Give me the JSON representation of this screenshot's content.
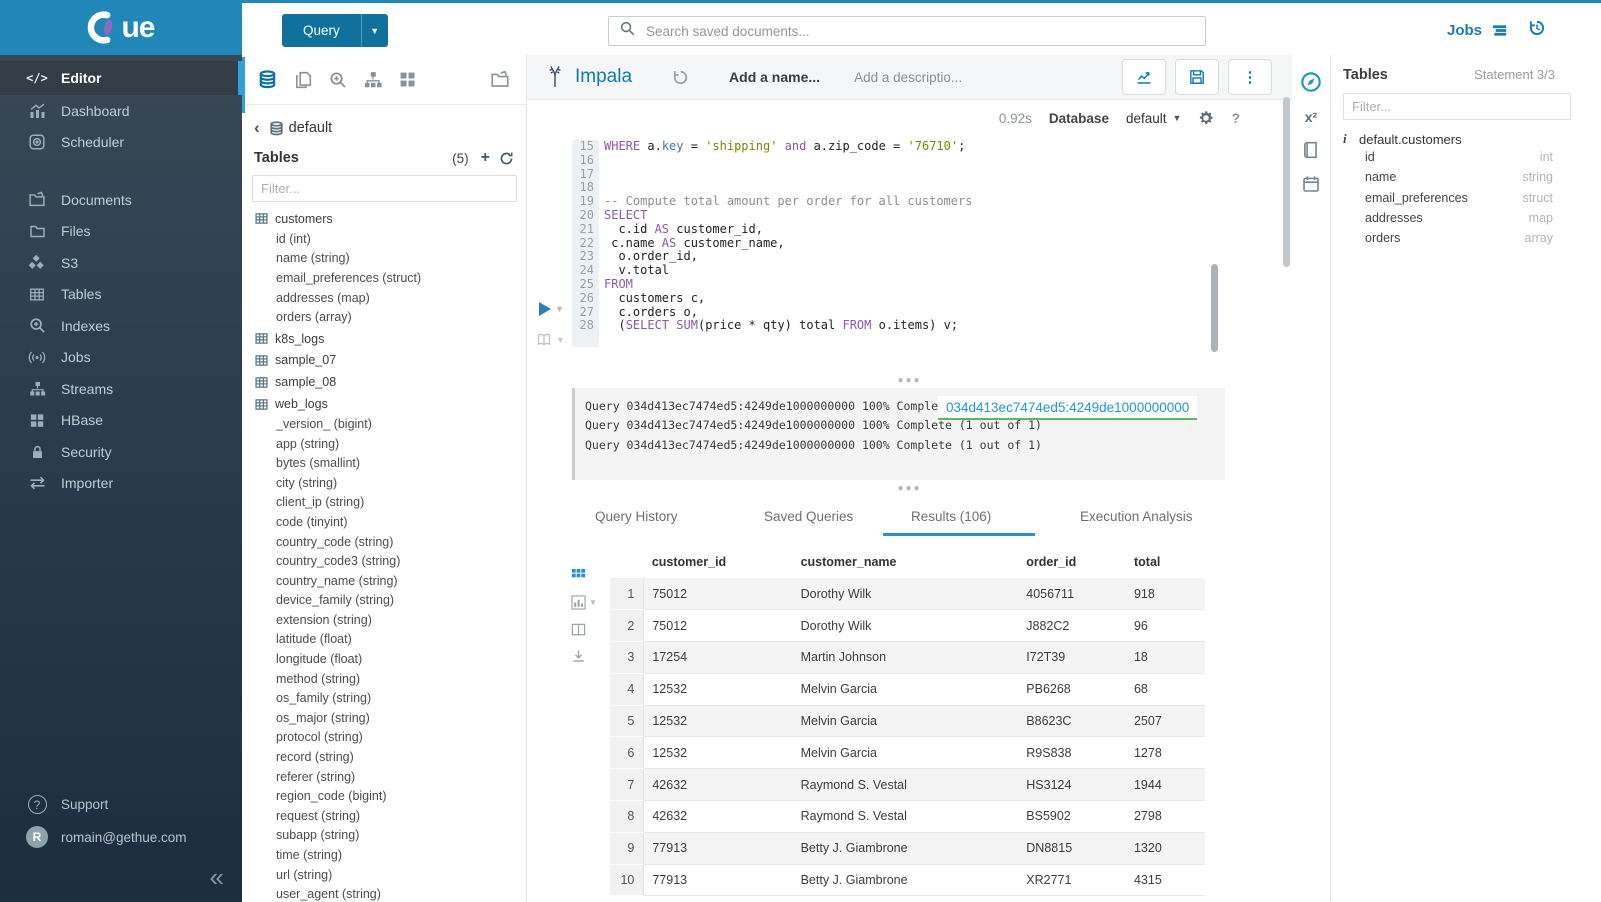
{
  "topbar": {
    "query_button": {
      "label": "Query"
    },
    "search_placeholder": "Search saved documents...",
    "jobs_label": "Jobs"
  },
  "sidebar": {
    "logo_text": "ue",
    "items": [
      {
        "label": "Editor",
        "icon": "code-icon",
        "active": true
      },
      {
        "label": "Dashboard",
        "icon": "dashboard-icon"
      },
      {
        "label": "Scheduler",
        "icon": "scheduler-icon",
        "gap_after": true
      },
      {
        "label": "Documents",
        "icon": "documents-icon"
      },
      {
        "label": "Files",
        "icon": "folder-icon"
      },
      {
        "label": "S3",
        "icon": "cubes-icon"
      },
      {
        "label": "Tables",
        "icon": "table-grid-icon"
      },
      {
        "label": "Indexes",
        "icon": "search-plus-icon"
      },
      {
        "label": "Jobs",
        "icon": "broadcast-icon"
      },
      {
        "label": "Streams",
        "icon": "sitemap-icon"
      },
      {
        "label": "HBase",
        "icon": "grid-icon"
      },
      {
        "label": "Security",
        "icon": "lock-icon"
      },
      {
        "label": "Importer",
        "icon": "swap-arrows-icon"
      }
    ],
    "support_label": "Support",
    "user_email": "romain@gethue.com",
    "avatar_letter": "R",
    "collapse_glyph": "«"
  },
  "left_assist": {
    "breadcrumb": {
      "database": "default"
    },
    "tables_header": "Tables",
    "tables_count": "(5)",
    "filter_placeholder": "Filter...",
    "tables": [
      {
        "name": "customers",
        "columns": [
          "id (int)",
          "name (string)",
          "email_preferences (struct)",
          "addresses (map)",
          "orders (array)"
        ]
      },
      {
        "name": "k8s_logs",
        "columns": []
      },
      {
        "name": "sample_07",
        "columns": []
      },
      {
        "name": "sample_08",
        "columns": []
      },
      {
        "name": "web_logs",
        "columns": [
          "_version_ (bigint)",
          "app (string)",
          "bytes (smallint)",
          "city (string)",
          "client_ip (string)",
          "code (tinyint)",
          "country_code (string)",
          "country_code3 (string)",
          "country_name (string)",
          "device_family (string)",
          "extension (string)",
          "latitude (float)",
          "longitude (float)",
          "method (string)",
          "os_family (string)",
          "os_major (string)",
          "protocol (string)",
          "record (string)",
          "referer (string)",
          "region_code (bigint)",
          "request (string)",
          "subapp (string)",
          "time (string)",
          "url (string)",
          "user_agent (string)"
        ]
      }
    ]
  },
  "editor": {
    "engine": "Impala",
    "name_placeholder": "Add a name...",
    "description_placeholder": "Add a descriptio...",
    "exec_time": "0.92s",
    "database_label": "Database",
    "database_value": "default",
    "code_lines": [
      {
        "n": 15,
        "tokens": [
          [
            "kw",
            "WHERE"
          ],
          [
            "pl",
            " a."
          ],
          [
            "res",
            "key"
          ],
          [
            "pl",
            " = "
          ],
          [
            "str",
            "'shipping'"
          ],
          [
            "pl",
            " "
          ],
          [
            "kw",
            "and"
          ],
          [
            "pl",
            " a.zip_code = "
          ],
          [
            "str",
            "'76710'"
          ],
          [
            "pl",
            ";"
          ]
        ]
      },
      {
        "n": 16,
        "tokens": []
      },
      {
        "n": 17,
        "tokens": []
      },
      {
        "n": 18,
        "tokens": []
      },
      {
        "n": 19,
        "tokens": [
          [
            "cmt",
            "-- Compute total amount per order for all customers"
          ]
        ]
      },
      {
        "n": 20,
        "tokens": [
          [
            "kw",
            "SELECT"
          ]
        ]
      },
      {
        "n": 21,
        "tokens": [
          [
            "pl",
            "  c.id "
          ],
          [
            "kw",
            "AS"
          ],
          [
            "pl",
            " customer_id,"
          ]
        ]
      },
      {
        "n": 22,
        "tokens": [
          [
            "pl",
            " c.name "
          ],
          [
            "kw",
            "AS"
          ],
          [
            "pl",
            " customer_name,"
          ]
        ]
      },
      {
        "n": 23,
        "tokens": [
          [
            "pl",
            "  o.order_id,"
          ]
        ]
      },
      {
        "n": 24,
        "tokens": [
          [
            "pl",
            "  v.total"
          ]
        ]
      },
      {
        "n": 25,
        "tokens": [
          [
            "kw",
            "FROM"
          ]
        ]
      },
      {
        "n": 26,
        "tokens": [
          [
            "pl",
            "  customers c,"
          ]
        ]
      },
      {
        "n": 27,
        "tokens": [
          [
            "pl",
            "  c.orders o,"
          ]
        ]
      },
      {
        "n": 28,
        "tokens": [
          [
            "pl",
            "  ("
          ],
          [
            "kw",
            "SELECT"
          ],
          [
            "pl",
            " "
          ],
          [
            "kw",
            "SUM"
          ],
          [
            "pl",
            "(price * qty) total "
          ],
          [
            "kw",
            "FROM"
          ],
          [
            "pl",
            " o.items) v;"
          ]
        ]
      }
    ]
  },
  "logs": {
    "lines": [
      "Query 034d413ec7474ed5:4249de1000000000 100% Complete (1 out of 1)",
      "Query 034d413ec7474ed5:4249de1000000000 100% Complete (1 out of 1)",
      "Query 034d413ec7474ed5:4249de1000000000 100% Complete (1 out of 1)"
    ],
    "overlay_id": "034d413ec7474ed5:4249de1000000000"
  },
  "tabs": [
    {
      "label": "Query History",
      "active": false
    },
    {
      "label": "Saved Queries",
      "active": false
    },
    {
      "label": "Results (106)",
      "active": true
    },
    {
      "label": "Execution Analysis",
      "active": false
    }
  ],
  "results": {
    "columns": [
      "customer_id",
      "customer_name",
      "order_id",
      "total"
    ],
    "rows": [
      [
        "1",
        "75012",
        "Dorothy Wilk",
        "4056711",
        "918"
      ],
      [
        "2",
        "75012",
        "Dorothy Wilk",
        "J882C2",
        "96"
      ],
      [
        "3",
        "17254",
        "Martin Johnson",
        "I72T39",
        "18"
      ],
      [
        "4",
        "12532",
        "Melvin Garcia",
        "PB6268",
        "68"
      ],
      [
        "5",
        "12532",
        "Melvin Garcia",
        "B8623C",
        "2507"
      ],
      [
        "6",
        "12532",
        "Melvin Garcia",
        "R9S838",
        "1278"
      ],
      [
        "7",
        "42632",
        "Raymond S. Vestal",
        "HS3124",
        "1944"
      ],
      [
        "8",
        "42632",
        "Raymond S. Vestal",
        "BS5902",
        "2798"
      ],
      [
        "9",
        "77913",
        "Betty J. Giambrone",
        "DN8815",
        "1320"
      ],
      [
        "10",
        "77913",
        "Betty J. Giambrone",
        "XR2771",
        "4315"
      ]
    ]
  },
  "right_assist": {
    "title": "Tables",
    "statement": "Statement 3/3",
    "filter_placeholder": "Filter...",
    "table_name": "default.customers",
    "columns": [
      {
        "name": "id",
        "type": "int"
      },
      {
        "name": "name",
        "type": "string"
      },
      {
        "name": "email_preferences",
        "type": "struct"
      },
      {
        "name": "addresses",
        "type": "map"
      },
      {
        "name": "orders",
        "type": "array"
      }
    ]
  },
  "colors": {
    "banner": "#2187b8",
    "query_button": "#10719c",
    "accent_blue": "#0c7cad",
    "link_blue": "#2196d3",
    "active_indicator": "#2ba3d8",
    "keyword": "#8959a8",
    "string": "#738a05",
    "comment": "#8e908c",
    "reserved": "#4271ae",
    "tab_underline": "#2c8fc9",
    "log_link_underline": "#5cb85c"
  }
}
